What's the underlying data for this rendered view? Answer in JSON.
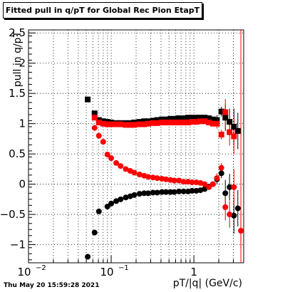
{
  "chart_data": {
    "type": "scatter",
    "title": "Fitted pull in q/pT for Global Rec Pion EtapT",
    "xlabel": "pT/|q| (GeV/c)",
    "ylabel": "pull in q/pT",
    "xscale": "log",
    "xlim": [
      0.01,
      4.0
    ],
    "ylim": [
      -1.3,
      2.55
    ],
    "x_ticks": [
      "10^{-2}",
      "10^{-1}",
      "1"
    ],
    "y_ticks": [
      "−1",
      "−0.5",
      "0",
      "0.5",
      "1",
      "1.5",
      "2",
      "2.5"
    ],
    "grid": true,
    "series": [
      {
        "color": "#000000",
        "marker": "square",
        "points": [
          [
            0.052,
            1.4
          ],
          [
            0.063,
            1.17
          ],
          [
            0.071,
            1.06
          ],
          [
            0.08,
            1.04
          ],
          [
            0.09,
            1.03
          ],
          [
            0.1,
            1.02
          ],
          [
            0.115,
            1.01
          ],
          [
            0.13,
            1.01
          ],
          [
            0.15,
            1.01
          ],
          [
            0.17,
            1.01
          ],
          [
            0.19,
            1.02
          ],
          [
            0.22,
            1.03
          ],
          [
            0.25,
            1.04
          ],
          [
            0.28,
            1.04
          ],
          [
            0.32,
            1.05
          ],
          [
            0.36,
            1.06
          ],
          [
            0.41,
            1.07
          ],
          [
            0.46,
            1.07
          ],
          [
            0.52,
            1.08
          ],
          [
            0.58,
            1.08
          ],
          [
            0.66,
            1.09
          ],
          [
            0.75,
            1.09
          ],
          [
            0.85,
            1.1
          ],
          [
            0.95,
            1.1
          ],
          [
            1.07,
            1.1
          ],
          [
            1.2,
            1.1
          ],
          [
            1.35,
            1.1
          ],
          [
            1.52,
            1.09
          ],
          [
            1.7,
            1.07
          ],
          [
            1.9,
            1.06
          ],
          [
            2.15,
            1.2
          ],
          [
            2.4,
            1.1
          ],
          [
            2.7,
            1.03
          ],
          [
            3.05,
            0.95
          ],
          [
            3.4,
            0.88
          ]
        ]
      },
      {
        "color": "#ff0000",
        "marker": "square",
        "points": [
          [
            0.063,
            1.1
          ],
          [
            0.071,
            1.02
          ],
          [
            0.08,
            1.0
          ],
          [
            0.09,
            0.99
          ],
          [
            0.1,
            0.99
          ],
          [
            0.115,
            0.99
          ],
          [
            0.13,
            0.99
          ],
          [
            0.15,
            0.98
          ],
          [
            0.17,
            0.98
          ],
          [
            0.19,
            0.98
          ],
          [
            0.22,
            0.99
          ],
          [
            0.25,
            0.99
          ],
          [
            0.28,
            1.0
          ],
          [
            0.32,
            1.01
          ],
          [
            0.36,
            1.01
          ],
          [
            0.41,
            1.02
          ],
          [
            0.46,
            1.02
          ],
          [
            0.52,
            1.02
          ],
          [
            0.58,
            1.02
          ],
          [
            0.66,
            1.02
          ],
          [
            0.75,
            1.02
          ],
          [
            0.85,
            1.02
          ],
          [
            0.95,
            1.03
          ],
          [
            1.07,
            1.03
          ],
          [
            1.2,
            1.04
          ],
          [
            1.35,
            1.04
          ],
          [
            1.52,
            1.02
          ],
          [
            1.7,
            1.0
          ],
          [
            1.9,
            1.0
          ],
          [
            2.15,
            0.82
          ],
          [
            2.4,
            1.19
          ],
          [
            2.7,
            0.86
          ],
          [
            3.05,
            0.79
          ]
        ]
      },
      {
        "color": "#000000",
        "marker": "circle",
        "points": [
          [
            0.052,
            -1.2
          ],
          [
            0.063,
            -0.8
          ],
          [
            0.071,
            -0.45
          ],
          [
            0.09,
            -0.37
          ],
          [
            0.1,
            -0.32
          ],
          [
            0.115,
            -0.28
          ],
          [
            0.13,
            -0.25
          ],
          [
            0.15,
            -0.22
          ],
          [
            0.17,
            -0.2
          ],
          [
            0.19,
            -0.18
          ],
          [
            0.22,
            -0.16
          ],
          [
            0.25,
            -0.15
          ],
          [
            0.28,
            -0.15
          ],
          [
            0.32,
            -0.14
          ],
          [
            0.36,
            -0.14
          ],
          [
            0.41,
            -0.13
          ],
          [
            0.46,
            -0.13
          ],
          [
            0.52,
            -0.13
          ],
          [
            0.58,
            -0.13
          ],
          [
            0.66,
            -0.12
          ],
          [
            0.75,
            -0.12
          ],
          [
            0.85,
            -0.12
          ],
          [
            0.95,
            -0.11
          ],
          [
            1.07,
            -0.11
          ],
          [
            1.2,
            -0.1
          ],
          [
            1.35,
            -0.08
          ],
          [
            1.52,
            -0.04
          ],
          [
            1.7,
            0.0
          ],
          [
            1.9,
            0.08
          ],
          [
            2.15,
            0.18
          ],
          [
            2.4,
            -0.15
          ],
          [
            2.7,
            -0.05
          ],
          [
            3.05,
            -0.52
          ],
          [
            3.4,
            -0.4
          ]
        ]
      },
      {
        "color": "#ff0000",
        "marker": "circle",
        "points": [
          [
            0.063,
            0.93
          ],
          [
            0.071,
            0.8
          ],
          [
            0.08,
            0.7
          ],
          [
            0.09,
            0.49
          ],
          [
            0.1,
            0.43
          ],
          [
            0.115,
            0.35
          ],
          [
            0.13,
            0.3
          ],
          [
            0.15,
            0.25
          ],
          [
            0.17,
            0.22
          ],
          [
            0.19,
            0.19
          ],
          [
            0.22,
            0.16
          ],
          [
            0.25,
            0.14
          ],
          [
            0.28,
            0.12
          ],
          [
            0.32,
            0.11
          ],
          [
            0.36,
            0.1
          ],
          [
            0.41,
            0.09
          ],
          [
            0.46,
            0.08
          ],
          [
            0.52,
            0.07
          ],
          [
            0.58,
            0.06
          ],
          [
            0.66,
            0.06
          ],
          [
            0.75,
            0.04
          ],
          [
            0.85,
            0.04
          ],
          [
            0.95,
            0.03
          ],
          [
            1.07,
            0.03
          ],
          [
            1.2,
            0.02
          ],
          [
            1.35,
            0.0
          ],
          [
            1.52,
            -0.05
          ],
          [
            1.7,
            0.0
          ],
          [
            1.9,
            0.1
          ],
          [
            2.15,
            0.27
          ],
          [
            2.4,
            -0.38
          ],
          [
            2.7,
            -0.5
          ],
          [
            3.05,
            -0.05
          ],
          [
            3.7,
            -0.77
          ]
        ]
      }
    ]
  },
  "footer": {
    "timestamp": "Thu May 20 15:59:28 2021"
  }
}
